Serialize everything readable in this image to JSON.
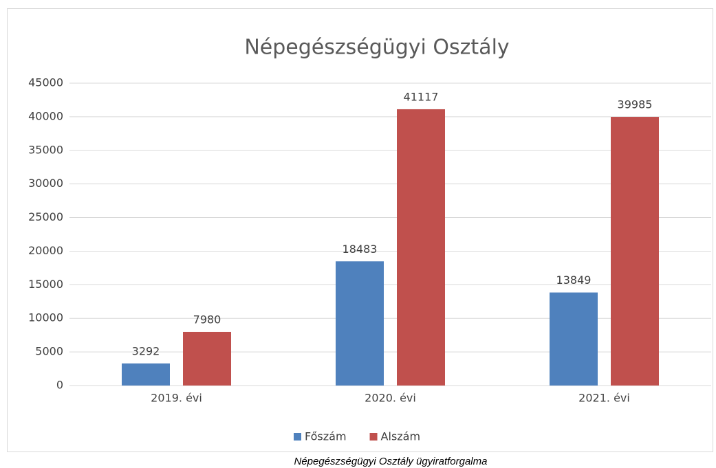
{
  "chart_data": {
    "type": "bar",
    "title": "Népegészségügyi Osztály",
    "categories": [
      "2019. évi",
      "2020. évi",
      "2021. évi"
    ],
    "series": [
      {
        "name": "Főszám",
        "color": "#4f81bd",
        "values": [
          3292,
          18483,
          13849
        ]
      },
      {
        "name": "Alszám",
        "color": "#c0504d",
        "values": [
          7980,
          41117,
          39985
        ]
      }
    ],
    "ylim": [
      0,
      45000
    ],
    "yticks": [
      0,
      5000,
      10000,
      15000,
      20000,
      25000,
      30000,
      35000,
      40000,
      45000
    ],
    "grid": true,
    "legend": "bottom",
    "caption": "Népegészségügyi Osztály ügyiratforgalma"
  }
}
